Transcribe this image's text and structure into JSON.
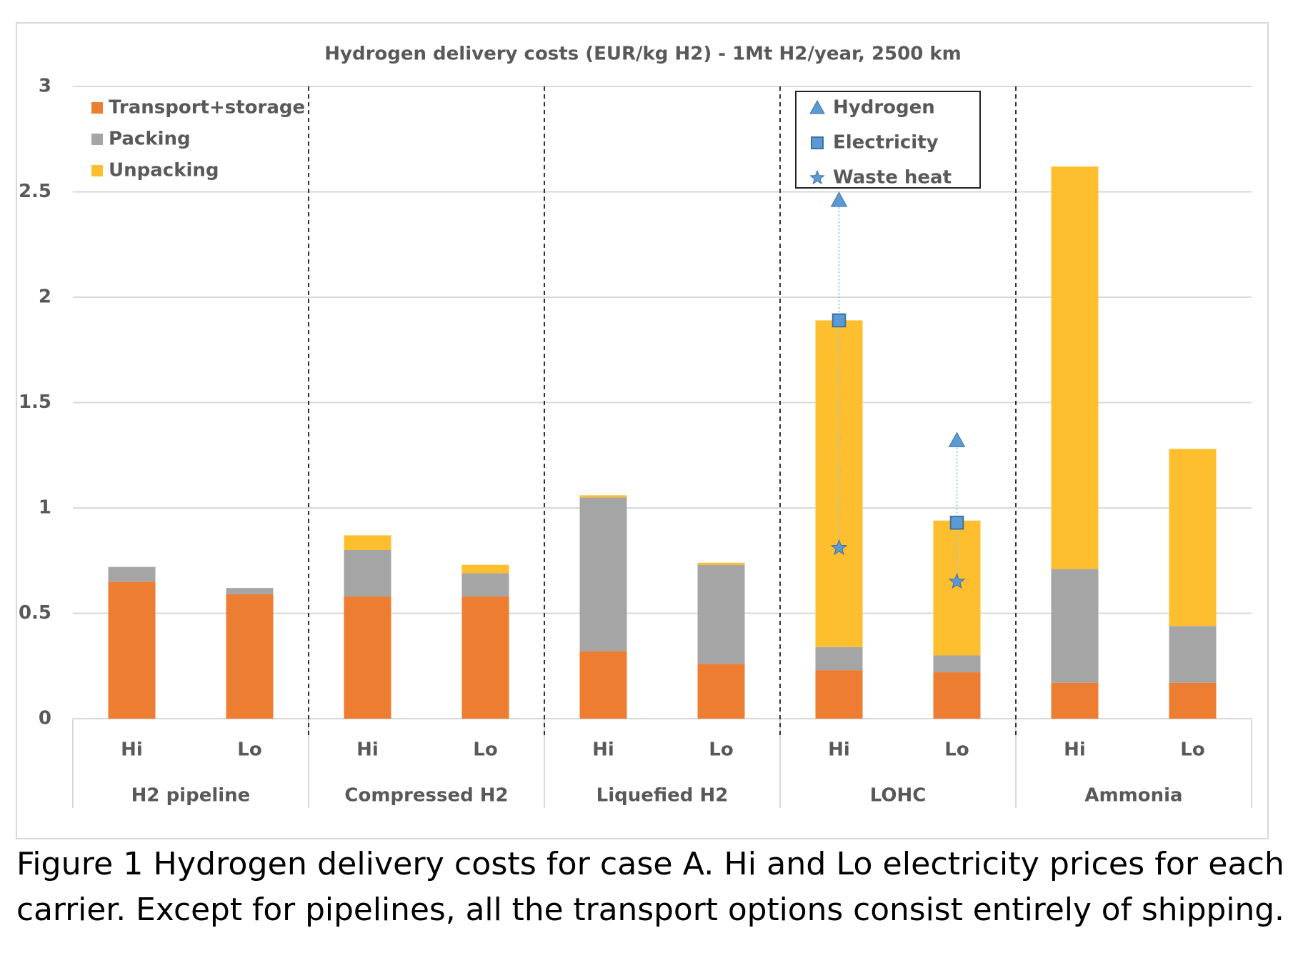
{
  "chart_data": {
    "type": "stacked_bar",
    "title": "Hydrogen delivery costs (EUR/kg H2) - 1Mt H2/year, 2500 km",
    "categories": [
      "Hi",
      "Lo",
      "Hi",
      "Lo",
      "Hi",
      "Lo",
      "Hi",
      "Lo",
      "Hi",
      "Lo"
    ],
    "groups": [
      "H2 pipeline",
      "Compressed H2",
      "Liquefied H2",
      "LOHC",
      "Ammonia"
    ],
    "series": [
      {
        "name": "Transport+storage",
        "color": "#ed7d31",
        "values": [
          0.65,
          0.59,
          0.58,
          0.58,
          0.32,
          0.26,
          0.23,
          0.22,
          0.17,
          0.17
        ]
      },
      {
        "name": "Packing",
        "color": "#a5a5a5",
        "values": [
          0.07,
          0.03,
          0.22,
          0.11,
          0.73,
          0.47,
          0.11,
          0.08,
          0.54,
          0.27
        ]
      },
      {
        "name": "Unpacking",
        "color": "#fdbf2d",
        "values": [
          0,
          0,
          0.07,
          0.04,
          0.01,
          0.01,
          1.55,
          0.64,
          1.91,
          0.84
        ]
      }
    ],
    "markers": [
      {
        "name": "Hydrogen",
        "shape": "triangle",
        "color": "#5b9bd5",
        "values": [
          null,
          null,
          null,
          null,
          null,
          null,
          2.46,
          1.32,
          null,
          null
        ]
      },
      {
        "name": "Electricity",
        "shape": "square",
        "color": "#5b9bd5",
        "values": [
          null,
          null,
          null,
          null,
          null,
          null,
          1.89,
          0.93,
          null,
          null
        ]
      },
      {
        "name": "Waste heat",
        "shape": "star",
        "color": "#5b9bd5",
        "values": [
          null,
          null,
          null,
          null,
          null,
          null,
          0.81,
          0.65,
          null,
          null
        ]
      }
    ],
    "ylim": [
      0,
      3
    ],
    "yticks": [
      0,
      0.5,
      1,
      1.5,
      2,
      2.5,
      3
    ],
    "grid": true,
    "caption": [
      "Figure 1 Hydrogen delivery costs for case A. Hi and Lo electricity prices for each",
      "carrier. Except for pipelines, all the transport options consist entirely of shipping."
    ]
  }
}
